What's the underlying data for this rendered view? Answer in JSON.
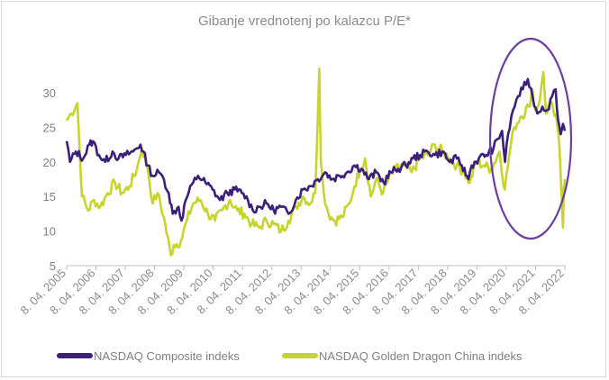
{
  "chart_data": {
    "type": "line",
    "title": "Gibanje vrednotenj po kalazcu P/E*",
    "xlabel": "",
    "ylabel": "",
    "ylim": [
      5,
      33
    ],
    "yticks": [
      5,
      10,
      15,
      20,
      25,
      30
    ],
    "xlim": [
      "2005-04-08",
      "2022-04-08"
    ],
    "x_tick_labels": [
      "8. 04. 2005",
      "8. 04. 2006",
      "8. 04. 2007",
      "8. 04. 2008",
      "8. 04. 2009",
      "8. 04. 2010",
      "8. 04. 2011",
      "8. 04. 2012",
      "8. 04. 2013",
      "8. 04. 2014",
      "8. 04. 2015",
      "8. 04. 2016",
      "8. 04. 2017",
      "8. 04. 2018",
      "8. 04. 2019",
      "8. 04. 2020",
      "8. 04. 2021",
      "8. 04. 2022"
    ],
    "grid": false,
    "legend_position": "bottom",
    "annotation": "ellipse highlighting 2020-2022",
    "series": [
      {
        "name": "NASDAQ Composite indeks",
        "color": "#3b1f7a",
        "points": [
          [
            "2005-04-08",
            23.0
          ],
          [
            "2005-05-20",
            20.0
          ],
          [
            "2005-08-01",
            21.5
          ],
          [
            "2005-11-01",
            20.5
          ],
          [
            "2006-01-15",
            22.5
          ],
          [
            "2006-03-01",
            23.0
          ],
          [
            "2006-05-15",
            21.0
          ],
          [
            "2006-08-01",
            20.0
          ],
          [
            "2006-11-01",
            21.5
          ],
          [
            "2007-01-15",
            20.5
          ],
          [
            "2007-04-15",
            21.0
          ],
          [
            "2007-07-15",
            21.5
          ],
          [
            "2007-10-15",
            22.5
          ],
          [
            "2008-01-15",
            19.5
          ],
          [
            "2008-03-15",
            18.0
          ],
          [
            "2008-06-01",
            18.5
          ],
          [
            "2008-08-01",
            17.5
          ],
          [
            "2008-10-01",
            15.5
          ],
          [
            "2008-11-20",
            12.5
          ],
          [
            "2009-02-01",
            13.5
          ],
          [
            "2009-03-09",
            11.5
          ],
          [
            "2009-05-01",
            14.5
          ],
          [
            "2009-08-01",
            17.0
          ],
          [
            "2009-10-01",
            18.0
          ],
          [
            "2010-01-01",
            17.0
          ],
          [
            "2010-04-01",
            16.0
          ],
          [
            "2010-07-01",
            14.5
          ],
          [
            "2010-10-01",
            15.5
          ],
          [
            "2011-01-01",
            16.0
          ],
          [
            "2011-04-01",
            15.5
          ],
          [
            "2011-06-15",
            14.5
          ],
          [
            "2011-08-15",
            13.0
          ],
          [
            "2011-11-01",
            13.5
          ],
          [
            "2012-02-01",
            14.0
          ],
          [
            "2012-05-01",
            13.0
          ],
          [
            "2012-08-01",
            13.5
          ],
          [
            "2012-11-01",
            12.5
          ],
          [
            "2013-02-01",
            14.5
          ],
          [
            "2013-05-01",
            16.0
          ],
          [
            "2013-08-01",
            16.5
          ],
          [
            "2013-11-01",
            17.5
          ],
          [
            "2014-02-01",
            18.5
          ],
          [
            "2014-05-01",
            17.5
          ],
          [
            "2014-08-01",
            18.0
          ],
          [
            "2014-11-01",
            18.5
          ],
          [
            "2015-02-01",
            19.5
          ],
          [
            "2015-05-01",
            19.0
          ],
          [
            "2015-08-01",
            17.5
          ],
          [
            "2015-11-01",
            18.5
          ],
          [
            "2016-02-01",
            17.0
          ],
          [
            "2016-05-01",
            18.5
          ],
          [
            "2016-08-01",
            19.0
          ],
          [
            "2016-11-01",
            19.5
          ],
          [
            "2017-02-01",
            20.5
          ],
          [
            "2017-05-01",
            21.0
          ],
          [
            "2017-08-01",
            21.5
          ],
          [
            "2017-11-01",
            21.0
          ],
          [
            "2018-02-01",
            21.5
          ],
          [
            "2018-05-01",
            20.0
          ],
          [
            "2018-08-01",
            20.5
          ],
          [
            "2018-10-01",
            19.5
          ],
          [
            "2018-12-24",
            17.5
          ],
          [
            "2019-02-01",
            19.5
          ],
          [
            "2019-05-01",
            20.5
          ],
          [
            "2019-08-01",
            21.0
          ],
          [
            "2019-11-01",
            22.0
          ],
          [
            "2020-02-15",
            24.5
          ],
          [
            "2020-03-23",
            20.0
          ],
          [
            "2020-05-01",
            24.0
          ],
          [
            "2020-07-01",
            27.5
          ],
          [
            "2020-09-01",
            29.5
          ],
          [
            "2020-11-01",
            30.5
          ],
          [
            "2021-01-01",
            32.0
          ],
          [
            "2021-03-01",
            29.5
          ],
          [
            "2021-05-01",
            27.0
          ],
          [
            "2021-07-01",
            28.0
          ],
          [
            "2021-09-01",
            27.5
          ],
          [
            "2021-11-01",
            29.5
          ],
          [
            "2021-12-15",
            30.5
          ],
          [
            "2022-01-15",
            26.0
          ],
          [
            "2022-02-15",
            24.0
          ],
          [
            "2022-03-15",
            25.5
          ],
          [
            "2022-04-08",
            24.5
          ]
        ]
      },
      {
        "name": "NASDAQ Golden Dragon China indeks",
        "color": "#c8d42e",
        "points": [
          [
            "2005-04-08",
            26.0
          ],
          [
            "2005-06-01",
            27.0
          ],
          [
            "2005-08-20",
            28.5
          ],
          [
            "2005-10-15",
            15.0
          ],
          [
            "2006-01-01",
            13.0
          ],
          [
            "2006-03-15",
            14.5
          ],
          [
            "2006-06-01",
            13.5
          ],
          [
            "2006-09-01",
            15.5
          ],
          [
            "2006-12-01",
            17.0
          ],
          [
            "2007-03-01",
            15.5
          ],
          [
            "2007-06-01",
            16.5
          ],
          [
            "2007-09-01",
            19.0
          ],
          [
            "2007-11-01",
            22.0
          ],
          [
            "2008-01-15",
            19.0
          ],
          [
            "2008-03-15",
            14.0
          ],
          [
            "2008-05-15",
            15.5
          ],
          [
            "2008-08-01",
            12.0
          ],
          [
            "2008-10-27",
            6.5
          ],
          [
            "2008-12-01",
            8.0
          ],
          [
            "2009-03-01",
            8.5
          ],
          [
            "2009-05-15",
            11.5
          ],
          [
            "2009-08-01",
            14.0
          ],
          [
            "2009-11-01",
            14.5
          ],
          [
            "2010-02-01",
            12.5
          ],
          [
            "2010-05-01",
            11.5
          ],
          [
            "2010-08-01",
            13.0
          ],
          [
            "2010-11-01",
            14.5
          ],
          [
            "2011-02-01",
            13.0
          ],
          [
            "2011-05-01",
            12.5
          ],
          [
            "2011-08-01",
            11.0
          ],
          [
            "2011-11-01",
            10.5
          ],
          [
            "2012-02-01",
            11.5
          ],
          [
            "2012-05-01",
            11.0
          ],
          [
            "2012-08-01",
            10.0
          ],
          [
            "2012-11-01",
            11.5
          ],
          [
            "2013-02-01",
            13.5
          ],
          [
            "2013-05-01",
            15.0
          ],
          [
            "2013-08-01",
            14.0
          ],
          [
            "2013-10-01",
            15.5
          ],
          [
            "2013-11-20",
            33.5
          ],
          [
            "2013-12-10",
            20.0
          ],
          [
            "2014-01-15",
            15.5
          ],
          [
            "2014-03-15",
            12.5
          ],
          [
            "2014-06-01",
            11.5
          ],
          [
            "2014-09-01",
            12.0
          ],
          [
            "2014-12-01",
            14.0
          ],
          [
            "2015-02-01",
            16.5
          ],
          [
            "2015-04-15",
            19.0
          ],
          [
            "2015-06-15",
            20.5
          ],
          [
            "2015-08-25",
            15.0
          ],
          [
            "2015-11-01",
            17.5
          ],
          [
            "2016-01-25",
            15.5
          ],
          [
            "2016-04-01",
            17.5
          ],
          [
            "2016-07-01",
            19.0
          ],
          [
            "2016-10-01",
            19.5
          ],
          [
            "2017-01-15",
            18.5
          ],
          [
            "2017-05-01",
            20.5
          ],
          [
            "2017-08-01",
            21.0
          ],
          [
            "2017-11-01",
            22.5
          ],
          [
            "2018-02-01",
            21.5
          ],
          [
            "2018-05-01",
            20.5
          ],
          [
            "2018-08-01",
            19.5
          ],
          [
            "2018-11-01",
            18.5
          ],
          [
            "2019-01-10",
            17.0
          ],
          [
            "2019-04-01",
            20.0
          ],
          [
            "2019-07-01",
            19.5
          ],
          [
            "2019-10-01",
            19.0
          ],
          [
            "2020-01-15",
            21.5
          ],
          [
            "2020-03-20",
            16.0
          ],
          [
            "2020-05-15",
            21.0
          ],
          [
            "2020-07-15",
            25.0
          ],
          [
            "2020-10-01",
            26.5
          ],
          [
            "2021-01-15",
            28.0
          ],
          [
            "2021-03-01",
            30.5
          ],
          [
            "2021-04-01",
            27.5
          ],
          [
            "2021-06-01",
            29.0
          ],
          [
            "2021-07-15",
            33.0
          ],
          [
            "2021-08-15",
            27.0
          ],
          [
            "2021-10-01",
            28.5
          ],
          [
            "2021-11-15",
            27.5
          ],
          [
            "2022-01-01",
            25.5
          ],
          [
            "2022-02-01",
            22.0
          ],
          [
            "2022-03-15",
            10.5
          ],
          [
            "2022-03-25",
            16.5
          ],
          [
            "2022-04-08",
            17.5
          ]
        ]
      }
    ]
  }
}
